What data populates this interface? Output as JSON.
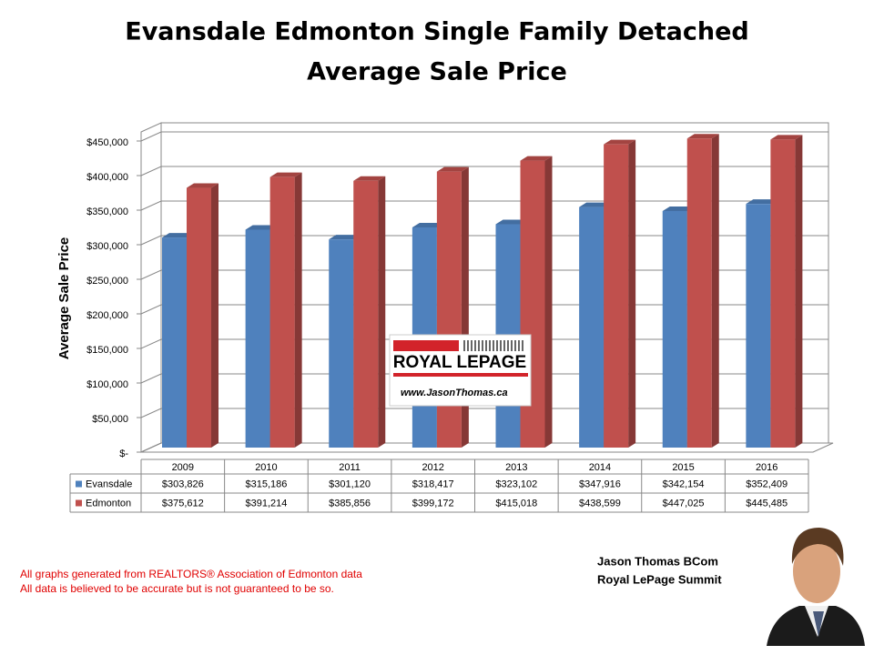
{
  "chart_data": {
    "type": "bar3d",
    "title": [
      "Evansdale Edmonton Single Family Detached",
      "Average Sale Price"
    ],
    "y_label": "Average Sale Price",
    "categories": [
      "2009",
      "2010",
      "2011",
      "2012",
      "2013",
      "2014",
      "2015",
      "2016"
    ],
    "series": [
      {
        "name": "Evansdale",
        "color": "#4f81bd",
        "values": [
          303826,
          315186,
          301120,
          318417,
          323102,
          347916,
          342154,
          352409
        ],
        "value_labels": [
          "$303,826",
          "$315,186",
          "$301,120",
          "$318,417",
          "$323,102",
          "$347,916",
          "$342,154",
          "$352,409"
        ]
      },
      {
        "name": "Edmonton",
        "color": "#c0504d",
        "values": [
          375612,
          391214,
          385856,
          399172,
          415018,
          438599,
          447025,
          445485
        ],
        "value_labels": [
          "$375,612",
          "$391,214",
          "$385,856",
          "$399,172",
          "$415,018",
          "$438,599",
          "$447,025",
          "$445,485"
        ]
      }
    ],
    "ylim": [
      0,
      450000
    ],
    "yticks": [
      {
        "value": 0,
        "label": "$-"
      },
      {
        "value": 50000,
        "label": "$50,000"
      },
      {
        "value": 100000,
        "label": "$100,000"
      },
      {
        "value": 150000,
        "label": "$150,000"
      },
      {
        "value": 200000,
        "label": "$200,000"
      },
      {
        "value": 250000,
        "label": "$250,000"
      },
      {
        "value": 300000,
        "label": "$300,000"
      },
      {
        "value": 350000,
        "label": "$350,000"
      },
      {
        "value": 400000,
        "label": "$400,000"
      },
      {
        "value": 450000,
        "label": "$450,000"
      }
    ],
    "grid": true
  },
  "logo": {
    "brand": "ROYAL LEPAGE",
    "url": "www.JasonThomas.ca"
  },
  "notes": [
    "All graphs generated from REALTORS® Association of Edmonton data",
    "All data is believed to be accurate but is not guaranteed to be so."
  ],
  "author": [
    "Jason Thomas BCom",
    "Royal LePage Summit"
  ]
}
